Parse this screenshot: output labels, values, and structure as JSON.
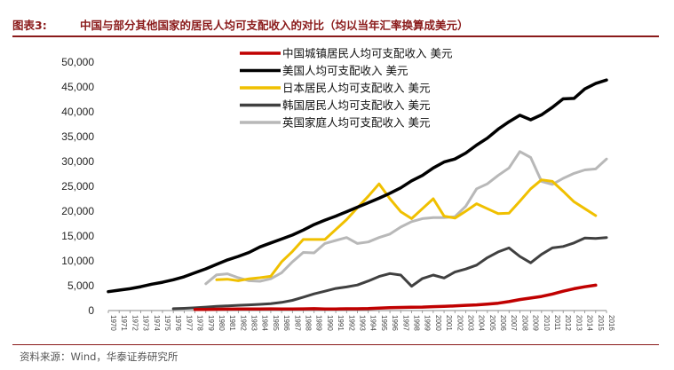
{
  "header": {
    "figure_label": "图表3:",
    "figure_title": "中国与部分其他国家的居民人均可支配收入的对比（均以当年汇率换算成美元）"
  },
  "footer": {
    "source": "资料来源：Wind，华泰证券研究所"
  },
  "colors": {
    "accent": "#8a1a1a"
  },
  "chart_data": {
    "type": "line",
    "x": [
      1970,
      1971,
      1972,
      1973,
      1974,
      1975,
      1976,
      1977,
      1978,
      1979,
      1980,
      1981,
      1982,
      1983,
      1984,
      1985,
      1986,
      1987,
      1988,
      1989,
      1990,
      1991,
      1992,
      1993,
      1994,
      1995,
      1996,
      1997,
      1998,
      1999,
      2000,
      2001,
      2002,
      2003,
      2004,
      2005,
      2006,
      2007,
      2008,
      2009,
      2010,
      2011,
      2012,
      2013,
      2014,
      2015,
      2016
    ],
    "ylim": [
      0,
      50000
    ],
    "yticks": [
      0,
      5000,
      10000,
      15000,
      20000,
      25000,
      30000,
      35000,
      40000,
      45000,
      50000
    ],
    "ytick_labels": [
      "0",
      "5,000",
      "10,000",
      "15,000",
      "20,000",
      "25,000",
      "30,000",
      "35,000",
      "40,000",
      "45,000",
      "50,000"
    ],
    "legend_position": "top-center",
    "series": [
      {
        "name": "中国城镇居民人均可支配收入 美元",
        "color": "#c00000",
        "values": [
          null,
          null,
          null,
          null,
          null,
          null,
          null,
          null,
          210,
          230,
          260,
          280,
          300,
          320,
          330,
          340,
          330,
          310,
          340,
          370,
          310,
          330,
          350,
          360,
          400,
          480,
          590,
          630,
          670,
          700,
          780,
          840,
          930,
          1050,
          1150,
          1310,
          1480,
          1800,
          2220,
          2510,
          2840,
          3330,
          3890,
          4390,
          4780,
          5100,
          null
        ]
      },
      {
        "name": "美国人均可支配收入 美元",
        "color": "#000000",
        "values": [
          3800,
          4100,
          4400,
          4800,
          5300,
          5700,
          6200,
          6800,
          7600,
          8400,
          9300,
          10200,
          10900,
          11700,
          12800,
          13600,
          14400,
          15200,
          16200,
          17300,
          18200,
          19000,
          19900,
          20800,
          21700,
          22600,
          23600,
          24700,
          26100,
          27200,
          28700,
          29900,
          30500,
          31700,
          33300,
          34700,
          36500,
          38000,
          39300,
          38400,
          39400,
          40900,
          42600,
          42700,
          44600,
          45700,
          46400
        ]
      },
      {
        "name": "日本居民人均可支配收入 美元",
        "color": "#f0c000",
        "values": [
          null,
          null,
          null,
          null,
          null,
          null,
          null,
          null,
          null,
          null,
          6200,
          6300,
          6000,
          6400,
          6600,
          6900,
          9800,
          11900,
          14300,
          14300,
          14300,
          16300,
          18300,
          20700,
          23000,
          25500,
          22500,
          19900,
          18500,
          20500,
          22500,
          19000,
          18600,
          20000,
          21500,
          20500,
          19500,
          19600,
          22000,
          24500,
          26300,
          26000,
          24000,
          21900,
          20500,
          19100,
          null
        ]
      },
      {
        "name": "韩国居民人均可支配收入 美元",
        "color": "#404040",
        "values": [
          null,
          null,
          null,
          null,
          null,
          null,
          380,
          450,
          550,
          700,
          850,
          950,
          1050,
          1150,
          1250,
          1400,
          1650,
          2050,
          2700,
          3350,
          3900,
          4450,
          4750,
          5150,
          5950,
          6850,
          7450,
          7150,
          4900,
          6450,
          7150,
          6550,
          7750,
          8350,
          9150,
          10650,
          11800,
          12600,
          10900,
          9600,
          11300,
          12600,
          12900,
          13600,
          14600,
          14500,
          14700
        ]
      },
      {
        "name": "英国家庭人均可支配收入 美元",
        "color": "#b8b8b8",
        "values": [
          null,
          null,
          null,
          null,
          null,
          null,
          null,
          null,
          null,
          5400,
          7200,
          7400,
          6600,
          6000,
          5900,
          6400,
          7600,
          9800,
          11700,
          11600,
          13500,
          14100,
          14700,
          13500,
          13800,
          14700,
          15400,
          16800,
          17900,
          18500,
          18700,
          18700,
          18900,
          21000,
          24500,
          25500,
          27200,
          28700,
          32000,
          30800,
          26000,
          25400,
          26600,
          27600,
          28300,
          28500,
          30500
        ]
      }
    ]
  }
}
